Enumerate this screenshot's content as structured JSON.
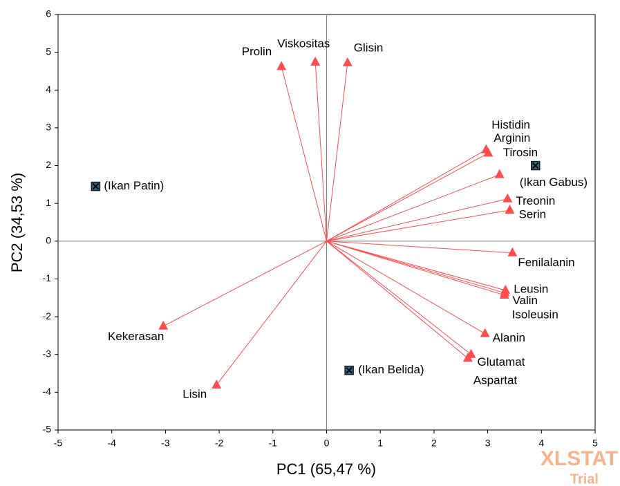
{
  "chart_data": {
    "type": "biplot",
    "x_label": "PC1 (65,47 %)",
    "y_label": "PC2 (34,53 %)",
    "xlim": [
      -5,
      5
    ],
    "ylim": [
      -5,
      6
    ],
    "xticks": [
      -5,
      -4,
      -3,
      -2,
      -1,
      0,
      1,
      2,
      3,
      4,
      5
    ],
    "yticks": [
      -5,
      -4,
      -3,
      -2,
      -1,
      0,
      1,
      2,
      3,
      4,
      5,
      6
    ],
    "watermark": [
      "XLSTAT",
      "Trial"
    ],
    "series": [
      {
        "color": "#ff4d4d",
        "arrows": true,
        "marker": "triangle",
        "labels": [
          "Prolin",
          "Viskositas",
          "Glisin",
          "Histidin",
          "Arginin",
          "Tirosin",
          "Treonin",
          "Serin",
          "Fenilalanin",
          "Leusin",
          "Valin",
          "Isoleusin",
          "Alanin",
          "Glutamat",
          "Aspartat",
          "Kekerasan",
          "Lisin"
        ],
        "x": [
          -0.84,
          -0.21,
          0.39,
          2.97,
          3.01,
          3.22,
          3.37,
          3.41,
          3.46,
          3.33,
          3.32,
          3.31,
          2.95,
          2.69,
          2.63,
          -3.04,
          -2.05
        ],
        "values": [
          4.62,
          4.74,
          4.72,
          2.42,
          2.33,
          1.76,
          1.12,
          0.82,
          -0.31,
          -1.3,
          -1.37,
          -1.43,
          -2.45,
          -3.0,
          -3.1,
          -2.25,
          -3.81
        ]
      },
      {
        "color": "#1a1a1a",
        "arrows": false,
        "marker": "square",
        "labels": [
          "(Ikan Patin)",
          "(Ikan Gabus)",
          "(Ikan Belida)"
        ],
        "x": [
          -4.3,
          3.89,
          0.42
        ],
        "values": [
          1.45,
          2.0,
          -3.42
        ]
      }
    ]
  }
}
